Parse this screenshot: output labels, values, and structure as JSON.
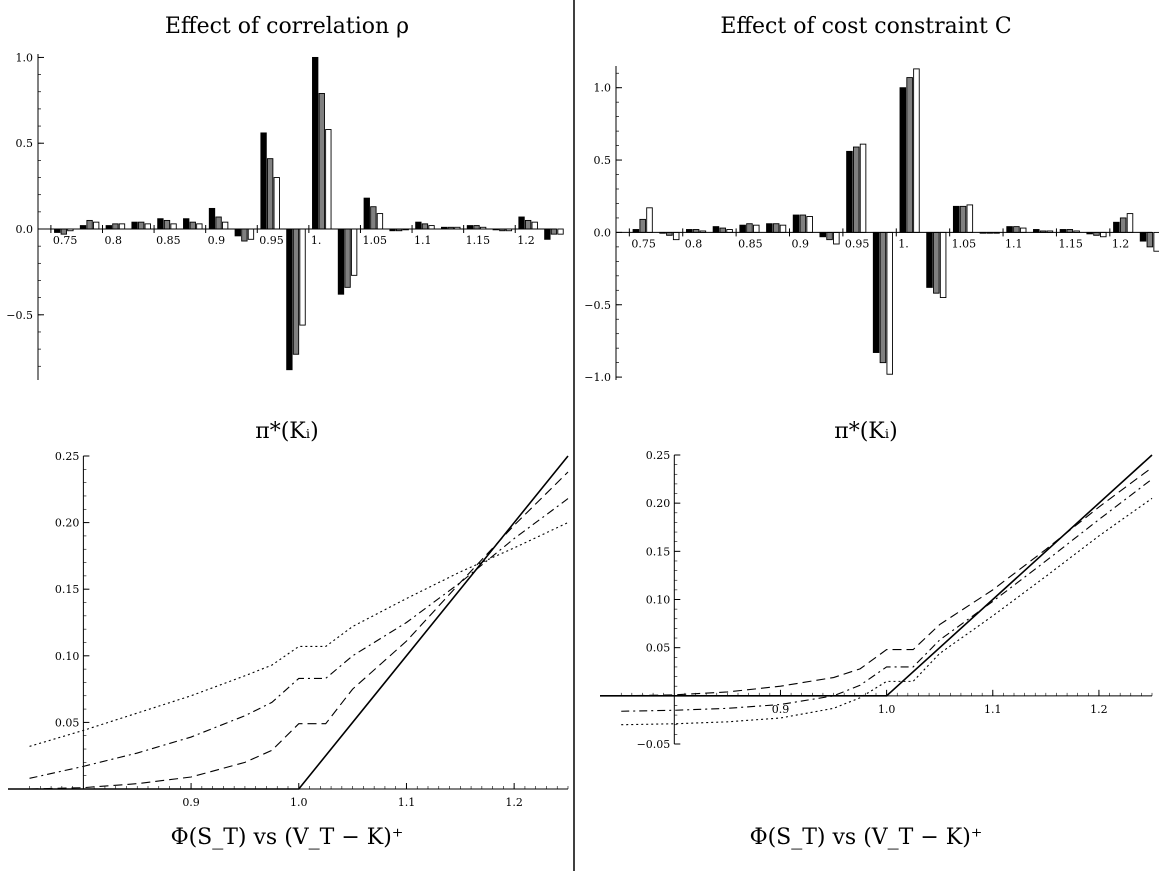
{
  "divider": true,
  "chart_data": [
    {
      "id": "bars_rho",
      "type": "bar",
      "title": "Effect of correlation ρ",
      "xlabel": "π*(Kᵢ)",
      "ylabel": "",
      "ylim": [
        -0.88,
        1.02
      ],
      "yticks": [
        -0.5,
        0.0,
        0.5,
        1.0
      ],
      "ytick_labels": [
        "−0.5",
        "0.0",
        "0.5",
        "1.0"
      ],
      "xticks": [
        0.75,
        0.8,
        0.85,
        0.9,
        0.95,
        1.0,
        1.05,
        1.1,
        1.15,
        1.2
      ],
      "xtick_labels": [
        "0.75",
        "0.8",
        "0.85",
        "0.9",
        "0.95",
        "1.",
        "1.05",
        "1.1",
        "1.15",
        "1.2"
      ],
      "categories": [
        0.75,
        0.775,
        0.8,
        0.825,
        0.85,
        0.875,
        0.9,
        0.925,
        0.95,
        0.975,
        1.0,
        1.025,
        1.05,
        1.075,
        1.1,
        1.125,
        1.15,
        1.175,
        1.2,
        1.225
      ],
      "series": [
        {
          "color": "#000000",
          "values": [
            -0.02,
            0.02,
            0.02,
            0.04,
            0.06,
            0.06,
            0.12,
            -0.04,
            0.56,
            -0.82,
            1.0,
            -0.38,
            0.18,
            -0.01,
            0.04,
            0.01,
            0.02,
            0.0,
            0.07,
            -0.06
          ]
        },
        {
          "color": "#808080",
          "values": [
            -0.03,
            0.05,
            0.03,
            0.04,
            0.05,
            0.04,
            0.07,
            -0.07,
            0.41,
            -0.73,
            0.79,
            -0.34,
            0.13,
            -0.01,
            0.03,
            0.01,
            0.02,
            -0.01,
            0.05,
            -0.03
          ]
        },
        {
          "color": "#ffffff",
          "values": [
            -0.01,
            0.04,
            0.03,
            0.03,
            0.03,
            0.03,
            0.04,
            -0.06,
            0.3,
            -0.56,
            0.58,
            -0.27,
            0.09,
            0.0,
            0.02,
            0.01,
            0.01,
            -0.01,
            0.04,
            -0.03
          ]
        }
      ]
    },
    {
      "id": "bars_C",
      "type": "bar",
      "title": "Effect of cost constraint C",
      "xlabel": "π*(Kᵢ)",
      "ylabel": "",
      "ylim": [
        -1.02,
        1.15
      ],
      "yticks": [
        -1.0,
        -0.5,
        0.0,
        0.5,
        1.0
      ],
      "ytick_labels": [
        "−1.0",
        "−0.5",
        "0.0",
        "0.5",
        "1.0"
      ],
      "xticks": [
        0.75,
        0.8,
        0.85,
        0.9,
        0.95,
        1.0,
        1.05,
        1.1,
        1.15,
        1.2
      ],
      "xtick_labels": [
        "0.75",
        "0.8",
        "0.85",
        "0.9",
        "0.95",
        "1.",
        "1.05",
        "1.1",
        "1.15",
        "1.2"
      ],
      "categories": [
        0.75,
        0.775,
        0.8,
        0.825,
        0.85,
        0.875,
        0.9,
        0.925,
        0.95,
        0.975,
        1.0,
        1.025,
        1.05,
        1.075,
        1.1,
        1.125,
        1.15,
        1.175,
        1.2,
        1.225
      ],
      "series": [
        {
          "color": "#000000",
          "values": [
            0.02,
            0.0,
            0.02,
            0.04,
            0.05,
            0.06,
            0.12,
            -0.03,
            0.56,
            -0.83,
            1.0,
            -0.38,
            0.18,
            0.0,
            0.04,
            0.02,
            0.02,
            -0.01,
            0.07,
            -0.06
          ]
        },
        {
          "color": "#808080",
          "values": [
            0.09,
            -0.02,
            0.02,
            0.03,
            0.06,
            0.06,
            0.12,
            -0.05,
            0.59,
            -0.9,
            1.07,
            -0.42,
            0.18,
            0.0,
            0.04,
            0.01,
            0.02,
            -0.02,
            0.1,
            -0.1
          ]
        },
        {
          "color": "#ffffff",
          "values": [
            0.17,
            -0.05,
            0.01,
            0.02,
            0.05,
            0.05,
            0.11,
            -0.08,
            0.61,
            -0.98,
            1.13,
            -0.45,
            0.19,
            0.0,
            0.03,
            0.01,
            0.01,
            -0.03,
            0.13,
            -0.13
          ]
        }
      ]
    },
    {
      "id": "payoff_rho",
      "type": "line",
      "title": "",
      "xlabel": "Φ(S_T) vs (V_T − K)⁺",
      "ylabel": "",
      "xlim": [
        0.73,
        1.25
      ],
      "ylim": [
        0.0,
        0.25
      ],
      "xticks": [
        0.9,
        1.0,
        1.1,
        1.2
      ],
      "xtick_labels": [
        "0.9",
        "1.0",
        "1.1",
        "1.2"
      ],
      "yticks": [
        0.05,
        0.1,
        0.15,
        0.2,
        0.25
      ],
      "ytick_labels": [
        "0.05",
        "0.10",
        "0.15",
        "0.20",
        "0.25"
      ],
      "yaxis_at_x": 0.8,
      "series": [
        {
          "dash": "solid",
          "x": [
            0.73,
            1.0,
            1.25
          ],
          "y": [
            0.0,
            0.0,
            0.25
          ]
        },
        {
          "dash": "dashed",
          "x": [
            0.75,
            0.8,
            0.85,
            0.9,
            0.95,
            0.975,
            1.0,
            1.025,
            1.05,
            1.1,
            1.15,
            1.2,
            1.25
          ],
          "y": [
            0.0,
            0.001,
            0.004,
            0.009,
            0.02,
            0.029,
            0.049,
            0.049,
            0.075,
            0.111,
            0.155,
            0.198,
            0.238
          ]
        },
        {
          "dash": "dashdot",
          "x": [
            0.75,
            0.8,
            0.85,
            0.9,
            0.95,
            0.975,
            1.0,
            1.025,
            1.05,
            1.1,
            1.15,
            1.2,
            1.25
          ],
          "y": [
            0.008,
            0.017,
            0.027,
            0.039,
            0.055,
            0.065,
            0.083,
            0.083,
            0.1,
            0.125,
            0.155,
            0.188,
            0.218
          ]
        },
        {
          "dash": "dotted",
          "x": [
            0.75,
            0.8,
            0.85,
            0.9,
            0.95,
            0.975,
            1.0,
            1.025,
            1.05,
            1.1,
            1.15,
            1.2,
            1.25
          ],
          "y": [
            0.032,
            0.044,
            0.057,
            0.07,
            0.085,
            0.093,
            0.107,
            0.107,
            0.122,
            0.143,
            0.163,
            0.181,
            0.2
          ]
        }
      ]
    },
    {
      "id": "payoff_C",
      "type": "line",
      "title": "",
      "xlabel": "Φ(S_T) vs (V_T − K)⁺",
      "ylabel": "",
      "xlim": [
        0.73,
        1.25
      ],
      "ylim": [
        -0.05,
        0.25
      ],
      "xticks": [
        0.9,
        1.0,
        1.1,
        1.2
      ],
      "xtick_labels": [
        "0.9",
        "1.0",
        "1.1",
        "1.2"
      ],
      "yticks": [
        -0.05,
        0.05,
        0.1,
        0.15,
        0.2,
        0.25
      ],
      "ytick_labels": [
        "−0.05",
        "0.05",
        "0.10",
        "0.15",
        "0.20",
        "0.25"
      ],
      "yaxis_at_x": 0.8,
      "series": [
        {
          "dash": "solid",
          "x": [
            0.73,
            1.0,
            1.25
          ],
          "y": [
            0.0,
            0.0,
            0.25
          ]
        },
        {
          "dash": "dashed",
          "x": [
            0.75,
            0.8,
            0.85,
            0.9,
            0.95,
            0.975,
            1.0,
            1.025,
            1.05,
            1.1,
            1.15,
            1.2,
            1.25
          ],
          "y": [
            0.0,
            0.001,
            0.004,
            0.01,
            0.019,
            0.028,
            0.048,
            0.048,
            0.074,
            0.11,
            0.152,
            0.196,
            0.237
          ]
        },
        {
          "dash": "dashdot",
          "x": [
            0.75,
            0.8,
            0.85,
            0.9,
            0.95,
            0.975,
            1.0,
            1.025,
            1.05,
            1.1,
            1.15,
            1.2,
            1.25
          ],
          "y": [
            -0.016,
            -0.015,
            -0.013,
            -0.009,
            0.0,
            0.011,
            0.03,
            0.03,
            0.058,
            0.098,
            0.14,
            0.183,
            0.225
          ]
        },
        {
          "dash": "dotted",
          "x": [
            0.75,
            0.8,
            0.85,
            0.9,
            0.95,
            0.975,
            1.0,
            1.025,
            1.05,
            1.1,
            1.15,
            1.2,
            1.25
          ],
          "y": [
            -0.03,
            -0.029,
            -0.027,
            -0.023,
            -0.013,
            -0.002,
            0.015,
            0.015,
            0.044,
            0.083,
            0.124,
            0.166,
            0.205
          ]
        }
      ]
    }
  ]
}
